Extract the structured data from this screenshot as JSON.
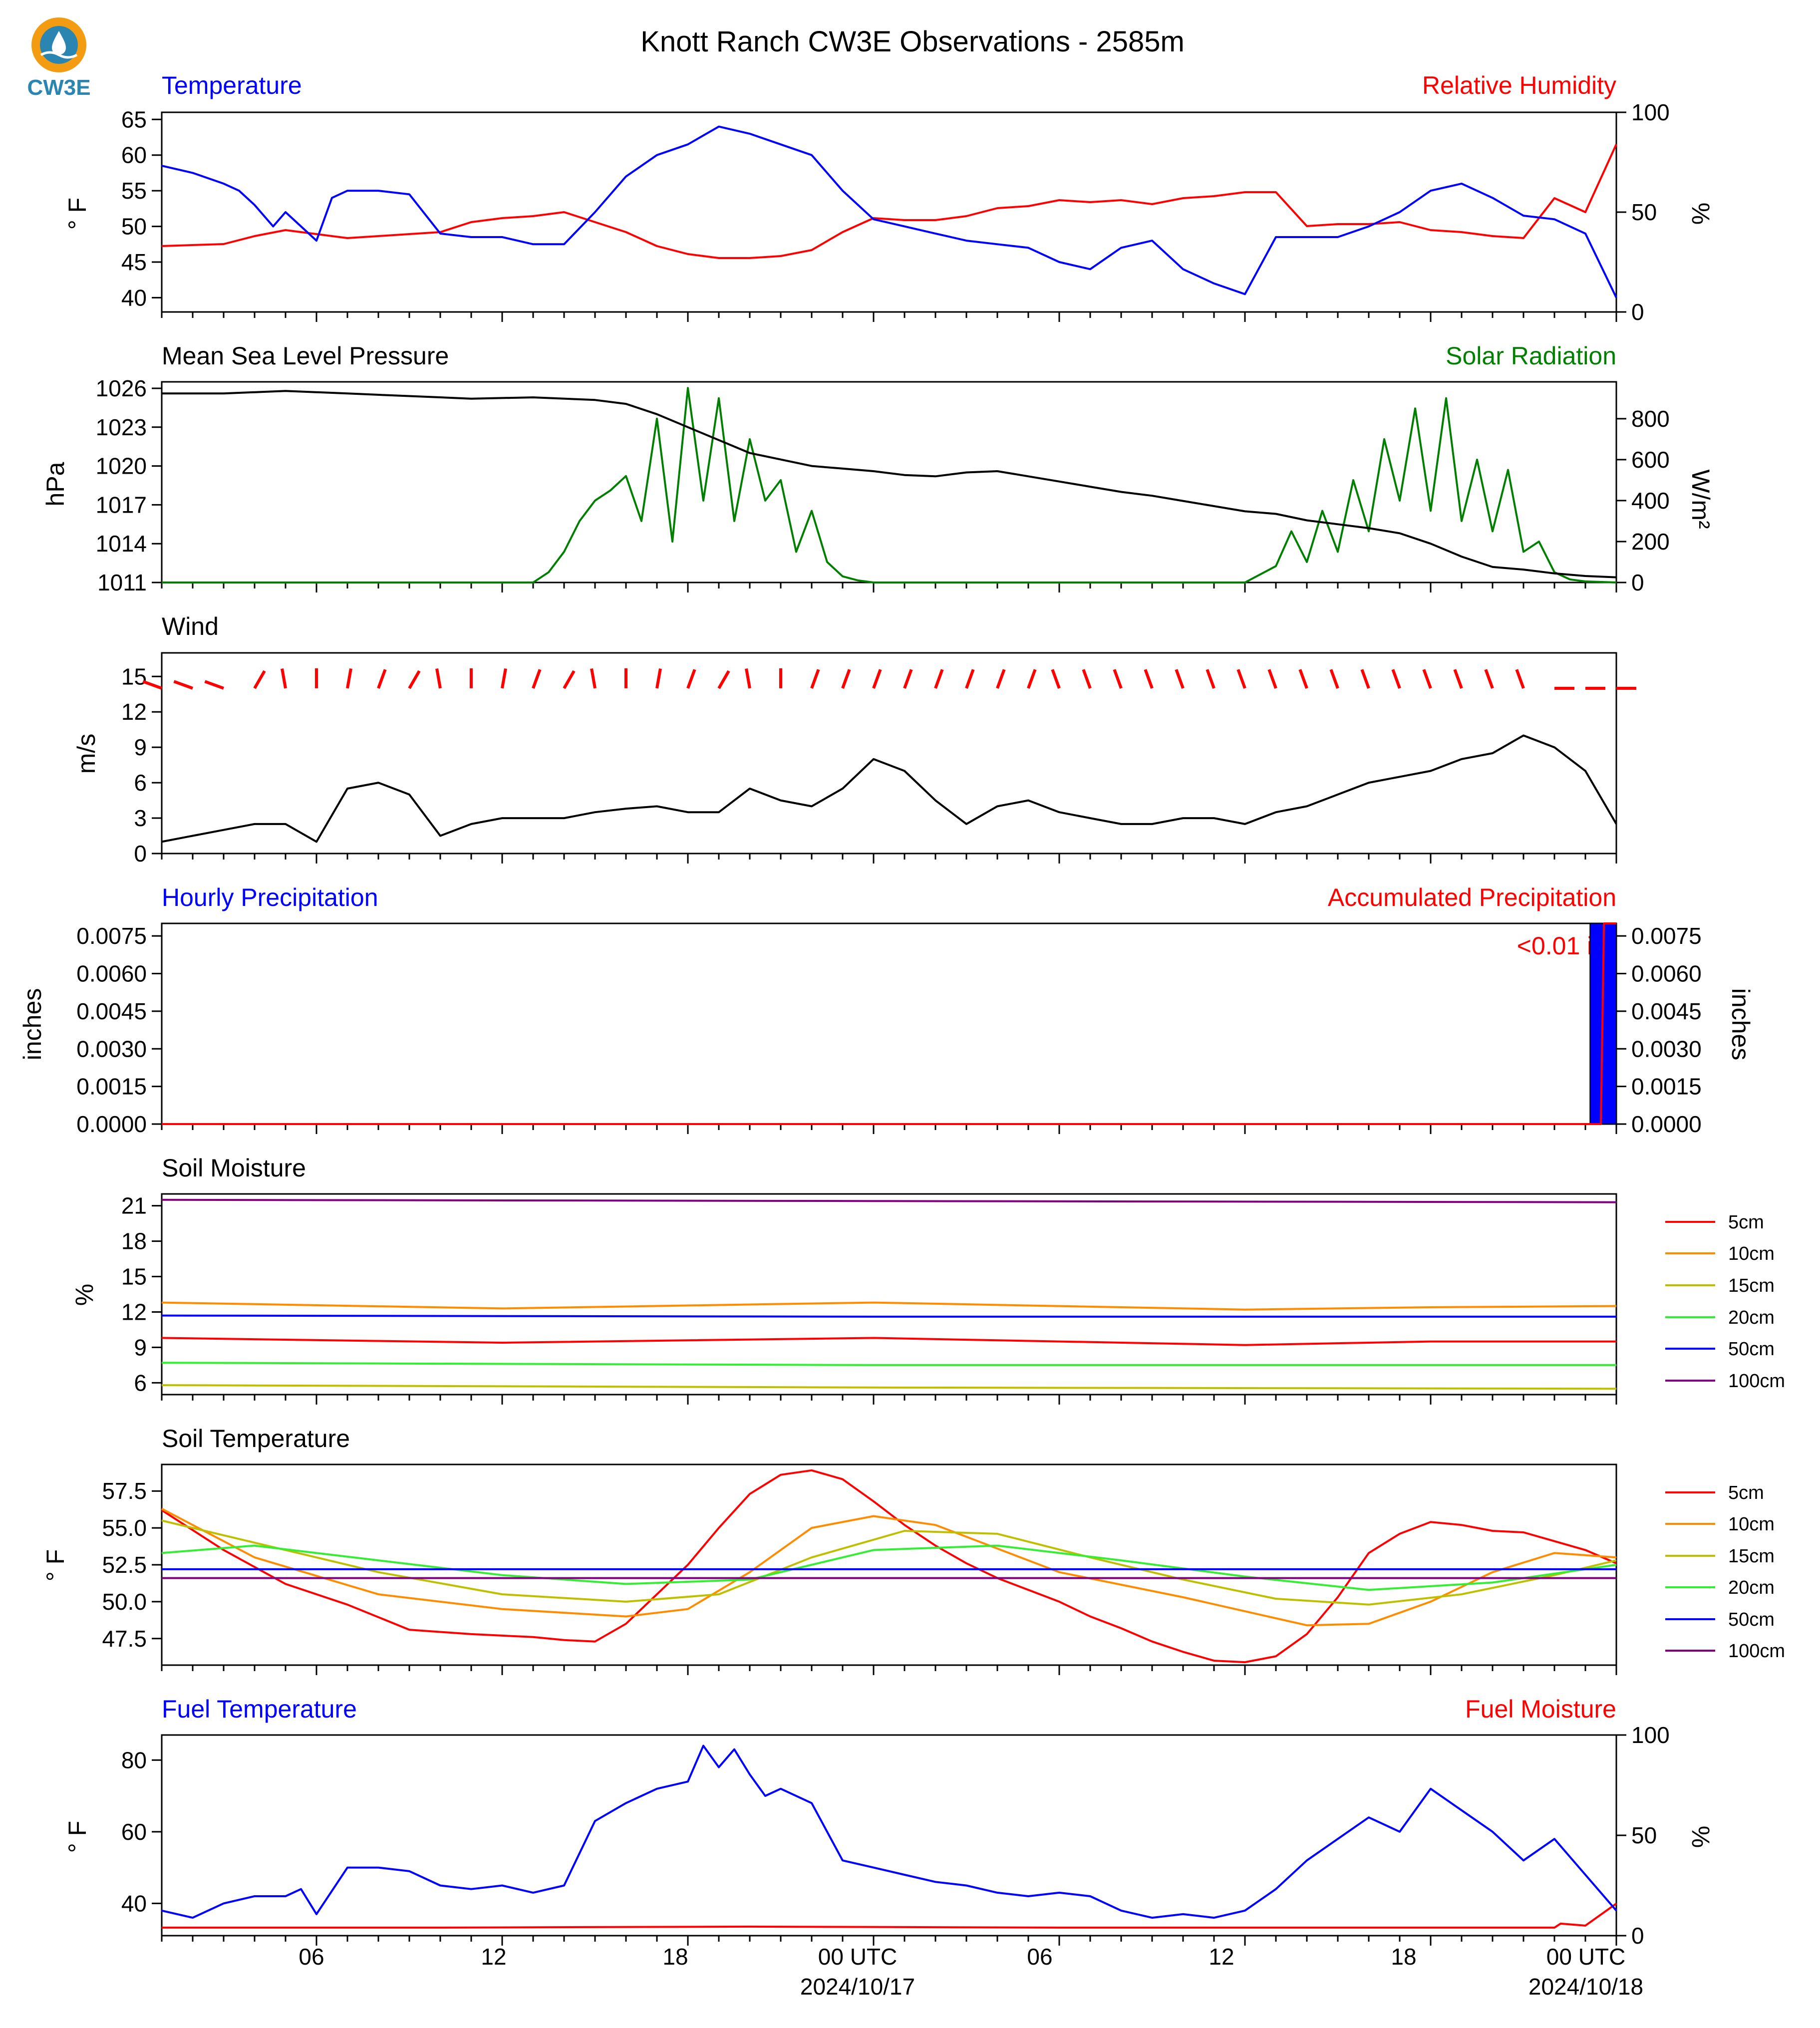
{
  "title": "Knott Ranch CW3E Observations - 2585m",
  "logo_text": "CW3E",
  "colors": {
    "blue": "#0000ff",
    "red": "#ff0000",
    "green": "#007f00",
    "black": "#000000",
    "orange": "#ff8c00",
    "olive": "#bfbf00",
    "lime": "#33ee33",
    "purple": "#800080"
  },
  "x_axis": {
    "ticks": [
      "06",
      "12",
      "18",
      "00 UTC",
      "06",
      "12",
      "18",
      "00 UTC"
    ],
    "dates": [
      "2024/10/17",
      "2024/10/18"
    ],
    "range_hours": [
      1,
      48
    ]
  },
  "panels": {
    "temperature": {
      "left_title": "Temperature",
      "right_title": "Relative Humidity",
      "left_unit": "° F",
      "right_unit": "%",
      "left_ticks": [
        "40",
        "45",
        "50",
        "55",
        "60",
        "65"
      ],
      "right_ticks": [
        "0",
        "50",
        "100"
      ]
    },
    "pressure": {
      "left_title": "Mean Sea Level Pressure",
      "right_title": "Solar Radiation",
      "left_unit": "hPa",
      "right_unit": "W/m²",
      "left_ticks": [
        "1011",
        "1014",
        "1017",
        "1020",
        "1023",
        "1026"
      ],
      "right_ticks": [
        "0",
        "200",
        "400",
        "600",
        "800"
      ]
    },
    "wind": {
      "left_title": "Wind",
      "left_unit": "m/s",
      "left_ticks": [
        "0",
        "3",
        "6",
        "9",
        "12",
        "15"
      ]
    },
    "precip": {
      "left_title": "Hourly Precipitation",
      "right_title": "Accumulated Precipitation",
      "left_unit": "inches",
      "right_unit": "inches",
      "left_ticks": [
        "0.0000",
        "0.0015",
        "0.0030",
        "0.0045",
        "0.0060",
        "0.0075"
      ],
      "right_ticks": [
        "0.0000",
        "0.0015",
        "0.0030",
        "0.0045",
        "0.0060",
        "0.0075"
      ],
      "annotation": "<0.01 in."
    },
    "soil_moisture": {
      "left_title": "Soil Moisture",
      "left_unit": "%",
      "left_ticks": [
        "6",
        "9",
        "12",
        "15",
        "18",
        "21"
      ]
    },
    "soil_temperature": {
      "left_title": "Soil Temperature",
      "left_unit": "° F",
      "left_ticks": [
        "47.5",
        "50.0",
        "52.5",
        "55.0",
        "57.5"
      ]
    },
    "fuel": {
      "left_title": "Fuel Temperature",
      "right_title": "Fuel Moisture",
      "left_unit": "° F",
      "right_unit": "%",
      "left_ticks": [
        "40",
        "60",
        "80"
      ],
      "right_ticks": [
        "0",
        "50",
        "100"
      ]
    }
  },
  "legend_labels": [
    "5cm",
    "10cm",
    "15cm",
    "20cm",
    "50cm",
    "100cm"
  ],
  "chart_data": [
    {
      "type": "line",
      "name": "Temperature",
      "x_unit": "hours since 2024/10/16 00 UTC",
      "ylim": [
        38,
        66
      ],
      "x": [
        1,
        2,
        3,
        3.5,
        4,
        4.6,
        5,
        6,
        6.5,
        7,
        8,
        9,
        10,
        11,
        12,
        13,
        14,
        15,
        16,
        17,
        18,
        19,
        20,
        21,
        22,
        23,
        24,
        25,
        26,
        27,
        28,
        29,
        30,
        31,
        32,
        33,
        34,
        35,
        36,
        37,
        38,
        39,
        40,
        41,
        42,
        43,
        44,
        45,
        46,
        47,
        48
      ],
      "values": [
        58.5,
        57.5,
        56,
        55,
        53,
        50,
        52,
        48,
        54,
        55,
        55,
        54.5,
        49,
        48.5,
        48.5,
        47.5,
        47.5,
        52,
        57,
        60,
        61.5,
        64,
        63,
        61.5,
        60,
        55,
        51,
        50,
        49,
        48,
        47.5,
        47,
        45,
        44,
        47,
        48,
        44,
        42,
        40.5,
        48.5,
        48.5,
        48.5,
        50,
        52,
        55,
        56,
        54,
        51.5,
        51,
        49,
        40
      ]
    },
    {
      "type": "line",
      "name": "Relative Humidity",
      "ylim": [
        0,
        100
      ],
      "x": [
        1,
        3,
        4,
        5,
        6,
        7,
        8,
        10,
        11,
        12,
        13,
        14,
        15,
        16,
        17,
        18,
        19,
        20,
        21,
        22,
        23,
        24,
        25,
        26,
        27,
        28,
        29,
        30,
        31,
        32,
        33,
        34,
        35,
        36,
        37,
        38,
        39,
        40,
        41,
        42,
        43,
        44,
        45,
        46,
        47,
        48
      ],
      "values": [
        33,
        34,
        38,
        41,
        39,
        37,
        38,
        40,
        45,
        47,
        48,
        50,
        45,
        40,
        33,
        29,
        27,
        27,
        28,
        31,
        40,
        47,
        46,
        46,
        48,
        52,
        53,
        56,
        55,
        56,
        54,
        57,
        58,
        60,
        60,
        43,
        44,
        44,
        45,
        41,
        40,
        38,
        37,
        57,
        50,
        84
      ]
    },
    {
      "type": "line",
      "name": "Mean Sea Level Pressure",
      "ylim": [
        1011,
        1026.5
      ],
      "x": [
        1,
        3,
        5,
        7,
        9,
        11,
        13,
        15,
        16,
        17,
        18,
        19,
        20,
        21,
        22,
        23,
        24,
        25,
        26,
        27,
        28,
        29,
        30,
        31,
        32,
        33,
        34,
        35,
        36,
        37,
        38,
        39,
        40,
        41,
        42,
        43,
        44,
        45,
        46,
        47,
        48
      ],
      "values": [
        1025.6,
        1025.6,
        1025.8,
        1025.6,
        1025.4,
        1025.2,
        1025.3,
        1025.1,
        1024.8,
        1024,
        1023,
        1022,
        1021,
        1020.5,
        1020,
        1019.8,
        1019.6,
        1019.3,
        1019.2,
        1019.5,
        1019.6,
        1019.2,
        1018.8,
        1018.4,
        1018,
        1017.7,
        1017.3,
        1016.9,
        1016.5,
        1016.3,
        1015.8,
        1015.5,
        1015.2,
        1014.8,
        1014,
        1013,
        1012.2,
        1012,
        1011.7,
        1011.5,
        1011.4
      ]
    },
    {
      "type": "line",
      "name": "Solar Radiation",
      "ylim": [
        0,
        980
      ],
      "x": [
        1,
        13,
        13.5,
        14,
        14.5,
        15,
        15.5,
        16,
        16.5,
        17,
        17.5,
        18,
        18.5,
        19,
        19.5,
        20,
        20.5,
        21,
        21.5,
        22,
        22.5,
        23,
        23.5,
        24,
        25,
        36,
        37,
        37.5,
        38,
        38.5,
        39,
        39.5,
        40,
        40.5,
        41,
        41.5,
        42,
        42.5,
        43,
        43.5,
        44,
        44.5,
        45,
        45.5,
        46,
        46.5,
        47,
        48
      ],
      "values": [
        0,
        0,
        50,
        150,
        300,
        400,
        450,
        520,
        300,
        800,
        200,
        950,
        400,
        900,
        300,
        700,
        400,
        500,
        150,
        350,
        100,
        30,
        10,
        0,
        0,
        0,
        80,
        250,
        100,
        350,
        150,
        500,
        250,
        700,
        400,
        850,
        350,
        900,
        300,
        600,
        250,
        550,
        150,
        200,
        50,
        15,
        5,
        0
      ]
    },
    {
      "type": "line",
      "name": "Wind Speed",
      "ylim": [
        0,
        17
      ],
      "x": [
        1,
        2,
        3,
        4,
        5,
        6,
        7,
        8,
        9,
        10,
        11,
        12,
        13,
        14,
        15,
        16,
        17,
        18,
        19,
        20,
        21,
        22,
        23,
        24,
        25,
        26,
        27,
        28,
        29,
        30,
        31,
        32,
        33,
        34,
        35,
        36,
        37,
        38,
        39,
        40,
        41,
        42,
        43,
        44,
        45,
        46,
        47,
        48
      ],
      "values": [
        1,
        1.5,
        2,
        2.5,
        2.5,
        1,
        5.5,
        6,
        5,
        1.5,
        2.5,
        3,
        3,
        3,
        3.5,
        3.8,
        4,
        3.5,
        3.5,
        5.5,
        4.5,
        4,
        5.5,
        8,
        7,
        4.5,
        2.5,
        4,
        4.5,
        3.5,
        3,
        2.5,
        2.5,
        3,
        3,
        2.5,
        3.5,
        4,
        5,
        6,
        6.5,
        7,
        8,
        8.5,
        10,
        9,
        7,
        2.5
      ]
    },
    {
      "type": "bar",
      "name": "Hourly Precipitation",
      "ylim": [
        0,
        0.008
      ],
      "x": [
        48
      ],
      "values": [
        0.008
      ]
    },
    {
      "type": "line",
      "name": "Accumulated Precipitation",
      "ylim": [
        0,
        0.008
      ],
      "x": [
        1,
        47.5,
        47.6,
        48
      ],
      "values": [
        0,
        0,
        0.008,
        0.008
      ]
    },
    {
      "type": "line",
      "name": "Soil Moisture",
      "ylim": [
        5,
        22
      ],
      "series": [
        {
          "name": "5cm",
          "x": [
            1,
            12,
            24,
            36,
            42,
            48
          ],
          "values": [
            9.8,
            9.4,
            9.8,
            9.2,
            9.5,
            9.5
          ]
        },
        {
          "name": "10cm",
          "x": [
            1,
            12,
            24,
            36,
            42,
            48
          ],
          "values": [
            12.8,
            12.3,
            12.8,
            12.2,
            12.4,
            12.5
          ]
        },
        {
          "name": "15cm",
          "x": [
            1,
            24,
            48
          ],
          "values": [
            5.8,
            5.6,
            5.5
          ]
        },
        {
          "name": "20cm",
          "x": [
            1,
            24,
            48
          ],
          "values": [
            7.7,
            7.5,
            7.5
          ]
        },
        {
          "name": "50cm",
          "x": [
            1,
            24,
            48
          ],
          "values": [
            11.7,
            11.6,
            11.6
          ]
        },
        {
          "name": "100cm",
          "x": [
            1,
            24,
            48
          ],
          "values": [
            21.5,
            21.4,
            21.3
          ]
        }
      ]
    },
    {
      "type": "line",
      "name": "Soil Temperature",
      "ylim": [
        45.7,
        59.3
      ],
      "series": [
        {
          "name": "5cm",
          "x": [
            1,
            3,
            5,
            7,
            9,
            11,
            13,
            14,
            15,
            16,
            17,
            18,
            19,
            20,
            21,
            22,
            23,
            24,
            25,
            26,
            27,
            28,
            29,
            30,
            31,
            32,
            33,
            34,
            35,
            36,
            37,
            38,
            39,
            40,
            41,
            42,
            43,
            44,
            45,
            46,
            47,
            48
          ],
          "values": [
            56.2,
            53.5,
            51.2,
            49.8,
            48.1,
            47.8,
            47.6,
            47.4,
            47.3,
            48.5,
            50.5,
            52.5,
            55.0,
            57.3,
            58.6,
            58.9,
            58.3,
            56.8,
            55.2,
            53.8,
            52.6,
            51.6,
            50.8,
            50.0,
            49.0,
            48.2,
            47.3,
            46.6,
            46.0,
            45.9,
            46.3,
            47.8,
            50.3,
            53.3,
            54.6,
            55.4,
            55.2,
            54.8,
            54.7,
            54.1,
            53.5,
            52.6
          ]
        },
        {
          "name": "10cm",
          "x": [
            1,
            4,
            8,
            12,
            16,
            18,
            20,
            22,
            24,
            26,
            30,
            34,
            38,
            40,
            42,
            44,
            46,
            48
          ],
          "values": [
            56.3,
            53.0,
            50.5,
            49.5,
            49.0,
            49.5,
            52.0,
            55.0,
            55.8,
            55.2,
            52.0,
            50.3,
            48.4,
            48.5,
            50.0,
            52.0,
            53.3,
            53.0
          ]
        },
        {
          "name": "15cm",
          "x": [
            1,
            4,
            8,
            12,
            16,
            19,
            22,
            25,
            28,
            31,
            34,
            37,
            40,
            43,
            46,
            48
          ],
          "values": [
            55.5,
            54.0,
            52.0,
            50.5,
            50.0,
            50.5,
            53.0,
            54.8,
            54.6,
            53.0,
            51.5,
            50.2,
            49.8,
            50.5,
            51.8,
            52.8
          ]
        },
        {
          "name": "20cm",
          "x": [
            1,
            4,
            8,
            12,
            16,
            20,
            24,
            28,
            32,
            36,
            40,
            44,
            48
          ],
          "values": [
            53.3,
            53.8,
            52.8,
            51.8,
            51.2,
            51.5,
            53.5,
            53.8,
            52.8,
            51.7,
            50.8,
            51.3,
            52.5
          ]
        },
        {
          "name": "50cm",
          "x": [
            1,
            48
          ],
          "values": [
            52.2,
            52.2
          ]
        },
        {
          "name": "100cm",
          "x": [
            1,
            48
          ],
          "values": [
            51.6,
            51.6
          ]
        }
      ]
    },
    {
      "type": "line",
      "name": "Fuel Temperature",
      "ylim": [
        31,
        87
      ],
      "x": [
        1,
        2,
        3,
        4,
        5,
        5.5,
        6,
        7,
        8,
        9,
        10,
        11,
        12,
        13,
        14,
        15,
        16,
        17,
        18,
        18.5,
        19,
        19.5,
        20,
        20.5,
        21,
        22,
        23,
        24,
        25,
        26,
        27,
        28,
        29,
        30,
        31,
        32,
        33,
        34,
        35,
        36,
        37,
        38,
        39,
        40,
        41,
        42,
        43,
        44,
        45,
        46,
        47,
        48
      ],
      "values": [
        38,
        36,
        40,
        42,
        42,
        44,
        37,
        50,
        50,
        49,
        45,
        44,
        45,
        43,
        45,
        63,
        68,
        72,
        74,
        84,
        78,
        83,
        76,
        70,
        72,
        68,
        52,
        50,
        48,
        46,
        45,
        43,
        42,
        43,
        42,
        38,
        36,
        37,
        36,
        38,
        44,
        52,
        58,
        64,
        60,
        72,
        66,
        60,
        52,
        58,
        48,
        38
      ]
    },
    {
      "type": "line",
      "name": "Fuel Moisture",
      "ylim": [
        0,
        100
      ],
      "x": [
        1,
        10,
        20,
        30,
        40,
        46,
        46.2,
        47,
        48
      ],
      "values": [
        4,
        4,
        4.5,
        4,
        4,
        4,
        6,
        5,
        16
      ]
    }
  ]
}
